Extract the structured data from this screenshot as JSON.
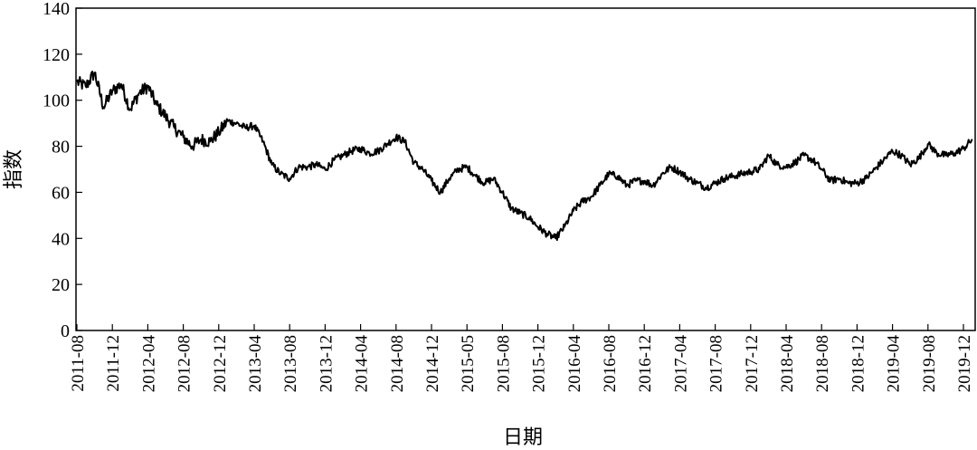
{
  "chart_data": {
    "type": "line",
    "xlabel": "日期",
    "ylabel": "指数",
    "ylim": [
      0,
      140
    ],
    "yticks": [
      "0",
      "20",
      "40",
      "60",
      "80",
      "100",
      "120",
      "140"
    ],
    "xticks": [
      "2011-08",
      "2011-12",
      "2012-04",
      "2012-08",
      "2012-12",
      "2013-04",
      "2013-08",
      "2013-12",
      "2014-04",
      "2014-08",
      "2014-12",
      "2015-05",
      "2015-08",
      "2015-12",
      "2016-04",
      "2016-08",
      "2016-12",
      "2017-04",
      "2017-08",
      "2017-12",
      "2018-04",
      "2018-08",
      "2018-12",
      "2019-04",
      "2019-08",
      "2019-12"
    ],
    "grid": false,
    "legend": "none",
    "line_color": "#000000",
    "series": [
      {
        "x": [
          "2011-08",
          "2011-09",
          "2011-10",
          "2011-11",
          "2011-12",
          "2012-01",
          "2012-02",
          "2012-03",
          "2012-04",
          "2012-05",
          "2012-06",
          "2012-07",
          "2012-08",
          "2012-09",
          "2012-10",
          "2012-11",
          "2012-12",
          "2013-01",
          "2013-02",
          "2013-03",
          "2013-04",
          "2013-05",
          "2013-06",
          "2013-07",
          "2013-08",
          "2013-09",
          "2013-10",
          "2013-11",
          "2013-12",
          "2014-01",
          "2014-02",
          "2014-03",
          "2014-04",
          "2014-05",
          "2014-06",
          "2014-07",
          "2014-08",
          "2014-09",
          "2014-10",
          "2014-11",
          "2014-12",
          "2015-01",
          "2015-02",
          "2015-03",
          "2015-04",
          "2015-05",
          "2015-06",
          "2015-07",
          "2015-08",
          "2015-09",
          "2015-10",
          "2015-11",
          "2015-12",
          "2016-01",
          "2016-02",
          "2016-03",
          "2016-04",
          "2016-05",
          "2016-06",
          "2016-07",
          "2016-08",
          "2016-09",
          "2016-10",
          "2016-11",
          "2016-12",
          "2017-01",
          "2017-02",
          "2017-03",
          "2017-04",
          "2017-05",
          "2017-06",
          "2017-07",
          "2017-08",
          "2017-09",
          "2017-10",
          "2017-11",
          "2017-12",
          "2018-01",
          "2018-02",
          "2018-03",
          "2018-04",
          "2018-05",
          "2018-06",
          "2018-07",
          "2018-08",
          "2018-09",
          "2018-10",
          "2018-11",
          "2018-12",
          "2019-01",
          "2019-02",
          "2019-03",
          "2019-04",
          "2019-05",
          "2019-06",
          "2019-07",
          "2019-08",
          "2019-09",
          "2019-10",
          "2019-11",
          "2019-12",
          "2020-01"
        ],
        "values": [
          108,
          106,
          112,
          97,
          104,
          107,
          96,
          103,
          106,
          98,
          93,
          88,
          84,
          80,
          83,
          82,
          86,
          91,
          90,
          88,
          89,
          82,
          72,
          68,
          66,
          71,
          71,
          72,
          70,
          74,
          76,
          78,
          79,
          77,
          78,
          81,
          84,
          82,
          73,
          70,
          65,
          60,
          66,
          70,
          71,
          67,
          64,
          66,
          60,
          53,
          51,
          49,
          45,
          42,
          40,
          45,
          52,
          56,
          58,
          63,
          68,
          67,
          63,
          65,
          65,
          63,
          68,
          71,
          69,
          66,
          64,
          62,
          64,
          66,
          67,
          68,
          69,
          70,
          76,
          72,
          71,
          73,
          76,
          74,
          70,
          65,
          66,
          64,
          64,
          66,
          70,
          74,
          78,
          76,
          72,
          75,
          81,
          77,
          76,
          77,
          79,
          83
        ]
      }
    ]
  }
}
